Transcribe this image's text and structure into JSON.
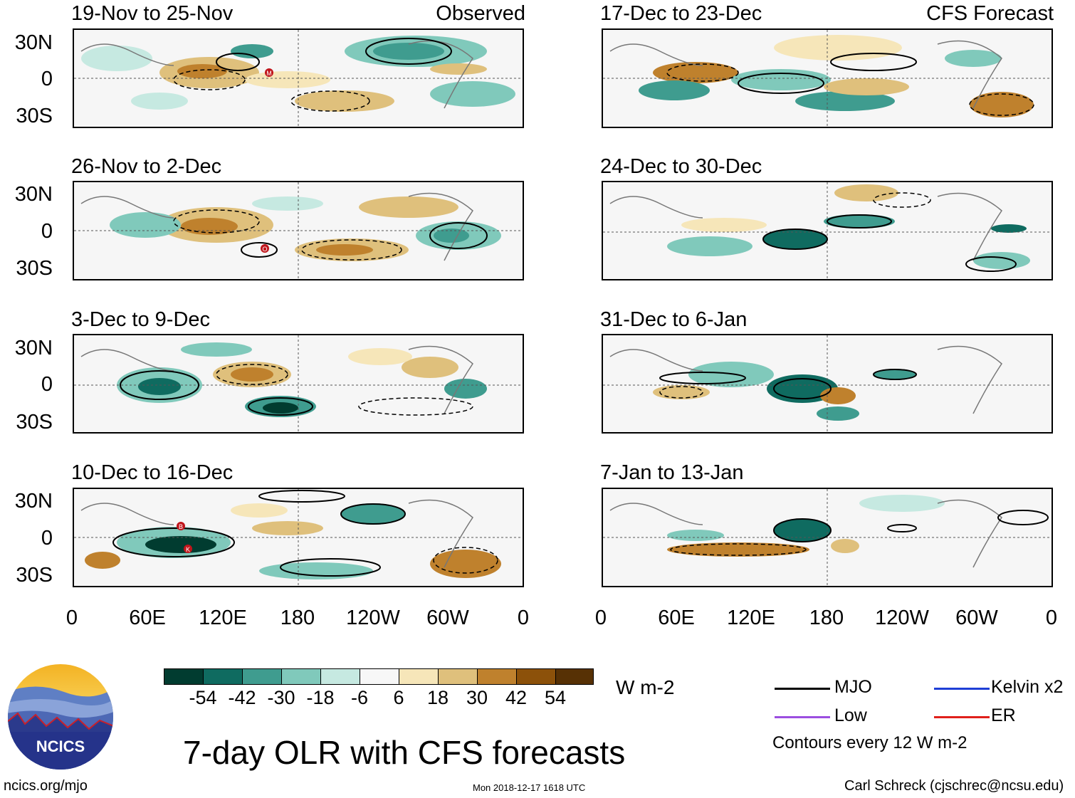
{
  "panels_left": [
    {
      "title": "19-Nov to 25-Nov",
      "tag": "Observed"
    },
    {
      "title": "26-Nov to 2-Dec",
      "tag": ""
    },
    {
      "title": "3-Dec to 9-Dec",
      "tag": ""
    },
    {
      "title": "10-Dec to 16-Dec",
      "tag": ""
    }
  ],
  "panels_right": [
    {
      "title": "17-Dec to 23-Dec",
      "tag": "CFS Forecast"
    },
    {
      "title": "24-Dec to 30-Dec",
      "tag": ""
    },
    {
      "title": "31-Dec to 6-Jan",
      "tag": ""
    },
    {
      "title": "7-Jan to 13-Jan",
      "tag": ""
    }
  ],
  "lat_labels": [
    "30N",
    "0",
    "30S"
  ],
  "lon_labels": [
    "0",
    "60E",
    "120E",
    "180",
    "120W",
    "60W",
    "0"
  ],
  "colorbar": {
    "unit": "W m-2",
    "ticks": [
      "-54",
      "-42",
      "-30",
      "-18",
      "-6",
      "6",
      "18",
      "30",
      "42",
      "54"
    ],
    "colors": [
      "#013c30",
      "#0f6b60",
      "#3f9c8f",
      "#80c9bb",
      "#c6e9e1",
      "#f7f7f7",
      "#f6e6b9",
      "#dfc07c",
      "#bf812d",
      "#8c510a",
      "#573105"
    ]
  },
  "legend": {
    "items": [
      {
        "label": "MJO",
        "color": "#000000"
      },
      {
        "label": "Kelvin x2",
        "color": "#1e3fd6"
      },
      {
        "label": "Low",
        "color": "#9b4ee0"
      },
      {
        "label": "ER",
        "color": "#e0201b"
      }
    ],
    "note": "Contours every 12 W m-2"
  },
  "logo": {
    "text": "NCICS"
  },
  "main_title": "7-day OLR with CFS forecasts",
  "footer": {
    "left": "ncics.org/mjo",
    "center": "Mon 2018-12-17 1618 UTC",
    "right": "Carl Schreck (cjschrec@ncsu.edu)"
  },
  "storm_markers": [
    {
      "panel": 0,
      "label": "M"
    },
    {
      "panel": 1,
      "label": "O"
    },
    {
      "panel": 3,
      "label": "B"
    },
    {
      "panel": 3,
      "label": "K"
    }
  ]
}
